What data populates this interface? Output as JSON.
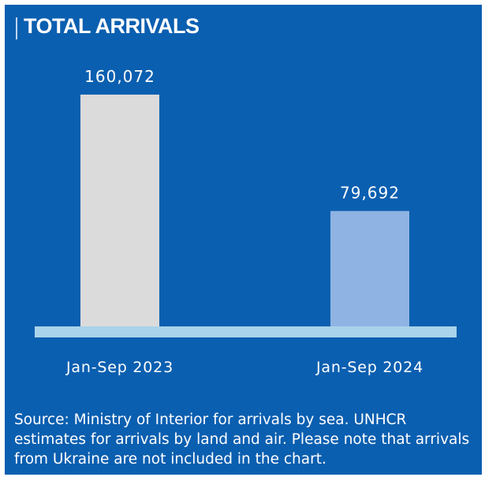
{
  "title": "TOTAL ARRIVALS",
  "colors": {
    "background": "#0b5fb0",
    "baseline": "#a9d3ea"
  },
  "chart_data": {
    "type": "bar",
    "categories": [
      "Jan-Sep 2023",
      "Jan-Sep 2024"
    ],
    "values": [
      160072,
      79692
    ],
    "value_labels": [
      "160,072",
      "79,692"
    ],
    "bar_colors": [
      "#dbdbdc",
      "#8fb4e3"
    ],
    "ylim": [
      0,
      160072
    ],
    "grid": false
  },
  "source": "Source: Ministry of Interior for arrivals by sea. UNHCR estimates for arrivals by land and air. Please note that arrivals from Ukraine are not included in the chart."
}
